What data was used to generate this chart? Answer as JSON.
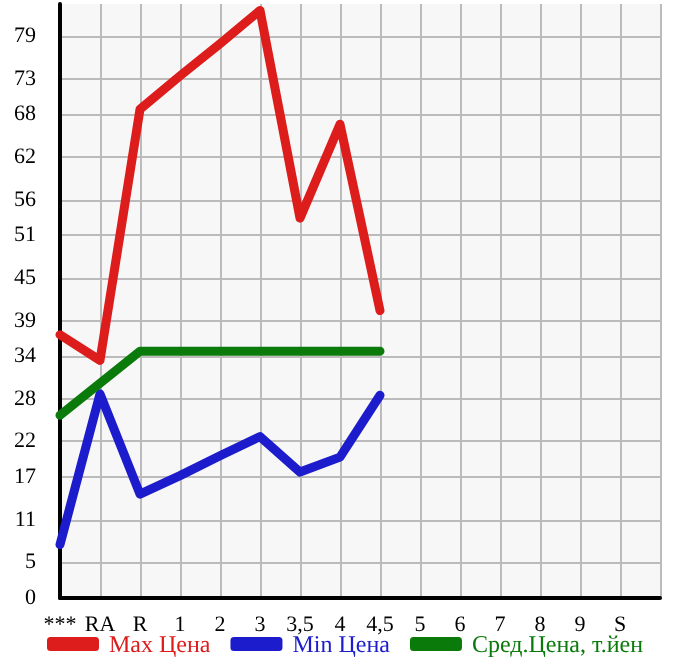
{
  "chart_data": {
    "type": "line",
    "categories": [
      "***",
      "RA",
      "R",
      "1",
      "2",
      "3",
      "3,5",
      "4",
      "4,5",
      "5",
      "6",
      "7",
      "8",
      "9",
      "S",
      null
    ],
    "series": [
      {
        "name": "Max Цена",
        "color": "#dd1c1c",
        "values": [
          37.0,
          33.4,
          68.7,
          73.4,
          77.9,
          82.6,
          53.4,
          66.6,
          40.4,
          null,
          null,
          null,
          null,
          null,
          null,
          null
        ]
      },
      {
        "name": "Min Цена",
        "color": "#1c1ccc",
        "values": [
          7.5,
          28.7,
          14.6,
          17.2,
          20.0,
          22.7,
          17.7,
          19.8,
          28.5,
          null,
          null,
          null,
          null,
          null,
          null,
          null
        ]
      },
      {
        "name": "Сред.Цена, т.йен",
        "color": "#0a7a0a",
        "values": [
          25.7,
          30.2,
          34.7,
          34.7,
          34.7,
          34.7,
          34.7,
          34.7,
          34.7,
          null,
          null,
          null,
          null,
          null,
          null,
          null
        ]
      }
    ],
    "ylim": [
      0,
      83.5
    ],
    "yticks": [
      0,
      5,
      11,
      17,
      22,
      28,
      34,
      39,
      45,
      51,
      56,
      62,
      68,
      73,
      79
    ],
    "grid": true,
    "legend": "bottom",
    "marker": "none",
    "line_style": "solid"
  }
}
